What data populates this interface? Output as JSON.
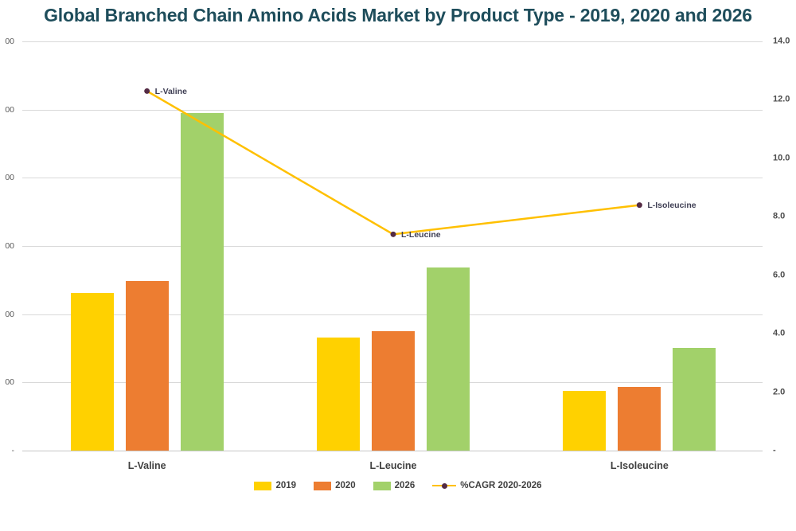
{
  "title": "Global Branched Chain Amino Acids Market by Product Type - 2019, 2020 and 2026",
  "colors": {
    "title": "#1e4d5b",
    "series_2019": "#ffd100",
    "series_2020": "#ed7d31",
    "series_2026": "#a2d16a",
    "cagr_line": "#ffc000",
    "cagr_marker": "#542b44",
    "gridline": "#d9d9d9",
    "axis_text_left": "#595959",
    "axis_text_right": "#4d4d4d",
    "category_text": "#404040",
    "legend_text": "#404040",
    "point_label_text": "#3f3f54"
  },
  "chart_data": {
    "type": "bar",
    "subtype": "grouped-bars-with-line-on-secondary-axis",
    "title": "Global Branched Chain Amino Acids Market by Product Type - 2019, 2020 and 2026",
    "categories": [
      "L-Valine",
      "L-Leucine",
      "L-Isoleucine"
    ],
    "series": [
      {
        "name": "2019",
        "type": "bar",
        "axis": "left",
        "color": "#ffd100",
        "values": [
          1155,
          830,
          435
        ]
      },
      {
        "name": "2020",
        "type": "bar",
        "axis": "left",
        "color": "#ed7d31",
        "values": [
          1245,
          875,
          465
        ]
      },
      {
        "name": "2026",
        "type": "bar",
        "axis": "left",
        "color": "#a2d16a",
        "values": [
          2475,
          1340,
          755
        ]
      },
      {
        "name": "%CAGR 2020-2026",
        "type": "line",
        "axis": "right",
        "color": "#ffc000",
        "marker_color": "#542b44",
        "values": [
          12.3,
          7.4,
          8.4
        ],
        "point_labels": [
          "L-Valine",
          "L-Leucine",
          "L-Isoleucine"
        ]
      }
    ],
    "left_axis": {
      "min": 0,
      "max": 3000,
      "gridline_step": 500,
      "tick_labels_top_to_bottom": [
        "00",
        "00",
        "00",
        "00",
        "00",
        "00",
        "-"
      ],
      "note": ""
    },
    "right_axis": {
      "min": 0,
      "max": 14,
      "tick_labels_top_to_bottom": [
        "14.0",
        "12.0",
        "10.0",
        "8.0",
        "6.0",
        "4.0",
        "2.0",
        "-"
      ]
    },
    "legend": [
      "2019",
      "2020",
      "2026",
      "%CAGR 2020-2026"
    ],
    "legend_position": "bottom",
    "grid": "horizontal"
  }
}
